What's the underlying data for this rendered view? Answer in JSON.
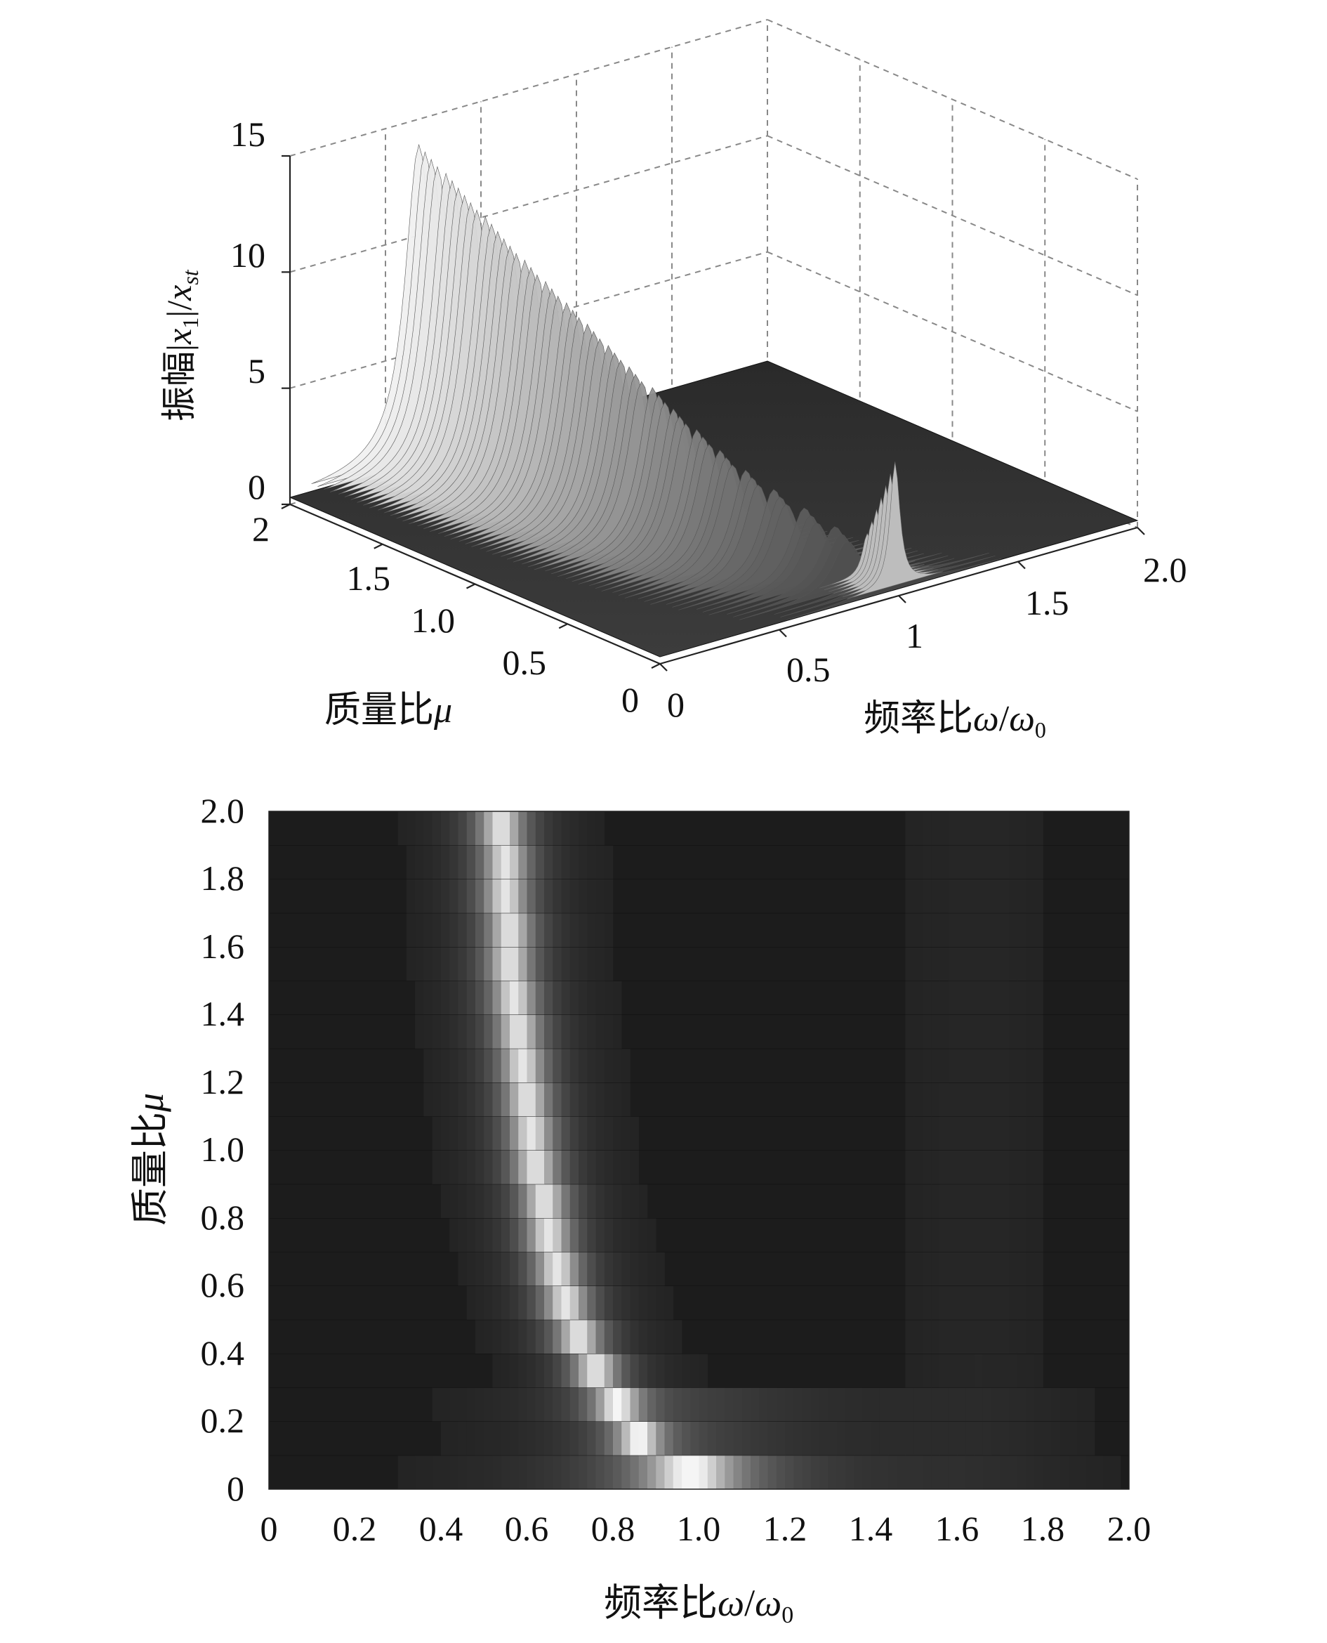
{
  "chart_data": [
    {
      "type": "surface3d",
      "x_axis": {
        "label_prefix": "频率比",
        "label_var": "ω",
        "label_sep": "/",
        "label_var2": "ω",
        "label_var2_sub": "0",
        "range": [
          0,
          2.0
        ],
        "ticks": [
          {
            "value": 0,
            "label": "0"
          },
          {
            "value": 0.5,
            "label": "0.5"
          },
          {
            "value": 1.0,
            "label": "1"
          },
          {
            "value": 1.5,
            "label": "1.5"
          },
          {
            "value": 2.0,
            "label": "2.0"
          }
        ]
      },
      "y_axis": {
        "label_prefix": "质量比",
        "label_var": "μ",
        "range": [
          0,
          2
        ],
        "ticks": [
          {
            "value": 0,
            "label": "0"
          },
          {
            "value": 0.5,
            "label": "0.5"
          },
          {
            "value": 1.0,
            "label": "1.0"
          },
          {
            "value": 1.5,
            "label": "1.5"
          },
          {
            "value": 2,
            "label": "2"
          }
        ]
      },
      "z_axis": {
        "label_prefix": "振幅|",
        "label_var": "x",
        "label_sub": "1",
        "label_mid": "|/",
        "label_var2": "x",
        "label_sub2": "st",
        "range": [
          0,
          15
        ],
        "ticks": [
          {
            "value": 0,
            "label": "0"
          },
          {
            "value": 5,
            "label": "5"
          },
          {
            "value": 10,
            "label": "10"
          },
          {
            "value": 15,
            "label": "15"
          }
        ]
      },
      "grid": true,
      "colormap": "gray",
      "ridge_peak": {
        "x": 0.5,
        "y": 2.0,
        "z": 13.6
      },
      "secondary_peak": {
        "x": 1.0,
        "y": 0.05,
        "z": 5.4
      }
    },
    {
      "type": "heatmap",
      "x_axis": {
        "label_prefix": "频率比",
        "label_var": "ω",
        "label_sep": "/",
        "label_var2": "ω",
        "label_var2_sub": "0",
        "range": [
          0,
          2.0
        ],
        "ticks": [
          {
            "value": 0,
            "label": "0"
          },
          {
            "value": 0.2,
            "label": "0.2"
          },
          {
            "value": 0.4,
            "label": "0.4"
          },
          {
            "value": 0.6,
            "label": "0.6"
          },
          {
            "value": 0.8,
            "label": "0.8"
          },
          {
            "value": 1.0,
            "label": "1.0"
          },
          {
            "value": 1.2,
            "label": "1.2"
          },
          {
            "value": 1.4,
            "label": "1.4"
          },
          {
            "value": 1.6,
            "label": "1.6"
          },
          {
            "value": 1.8,
            "label": "1.8"
          },
          {
            "value": 2.0,
            "label": "2.0"
          }
        ]
      },
      "y_axis": {
        "label_prefix": "质量比",
        "label_var": "μ",
        "range": [
          0,
          2.0
        ],
        "ticks": [
          {
            "value": 0,
            "label": "0"
          },
          {
            "value": 0.2,
            "label": "0.2"
          },
          {
            "value": 0.4,
            "label": "0.4"
          },
          {
            "value": 0.6,
            "label": "0.6"
          },
          {
            "value": 0.8,
            "label": "0.8"
          },
          {
            "value": 1.0,
            "label": "1.0"
          },
          {
            "value": 1.2,
            "label": "1.2"
          },
          {
            "value": 1.4,
            "label": "1.4"
          },
          {
            "value": 1.6,
            "label": "1.6"
          },
          {
            "value": 1.8,
            "label": "1.8"
          },
          {
            "value": 2.0,
            "label": "2.0"
          }
        ]
      },
      "colormap": "gray",
      "mu_rows": [
        0.05,
        0.15,
        0.25,
        0.35,
        0.45,
        0.55,
        0.65,
        0.75,
        0.85,
        0.95,
        1.05,
        1.15,
        1.25,
        1.35,
        1.45,
        1.55,
        1.65,
        1.75,
        1.85,
        1.95
      ],
      "ridge_center": [
        0.98,
        0.86,
        0.81,
        0.76,
        0.72,
        0.69,
        0.67,
        0.65,
        0.64,
        0.62,
        0.61,
        0.6,
        0.59,
        0.58,
        0.57,
        0.56,
        0.56,
        0.55,
        0.55,
        0.54
      ]
    }
  ]
}
